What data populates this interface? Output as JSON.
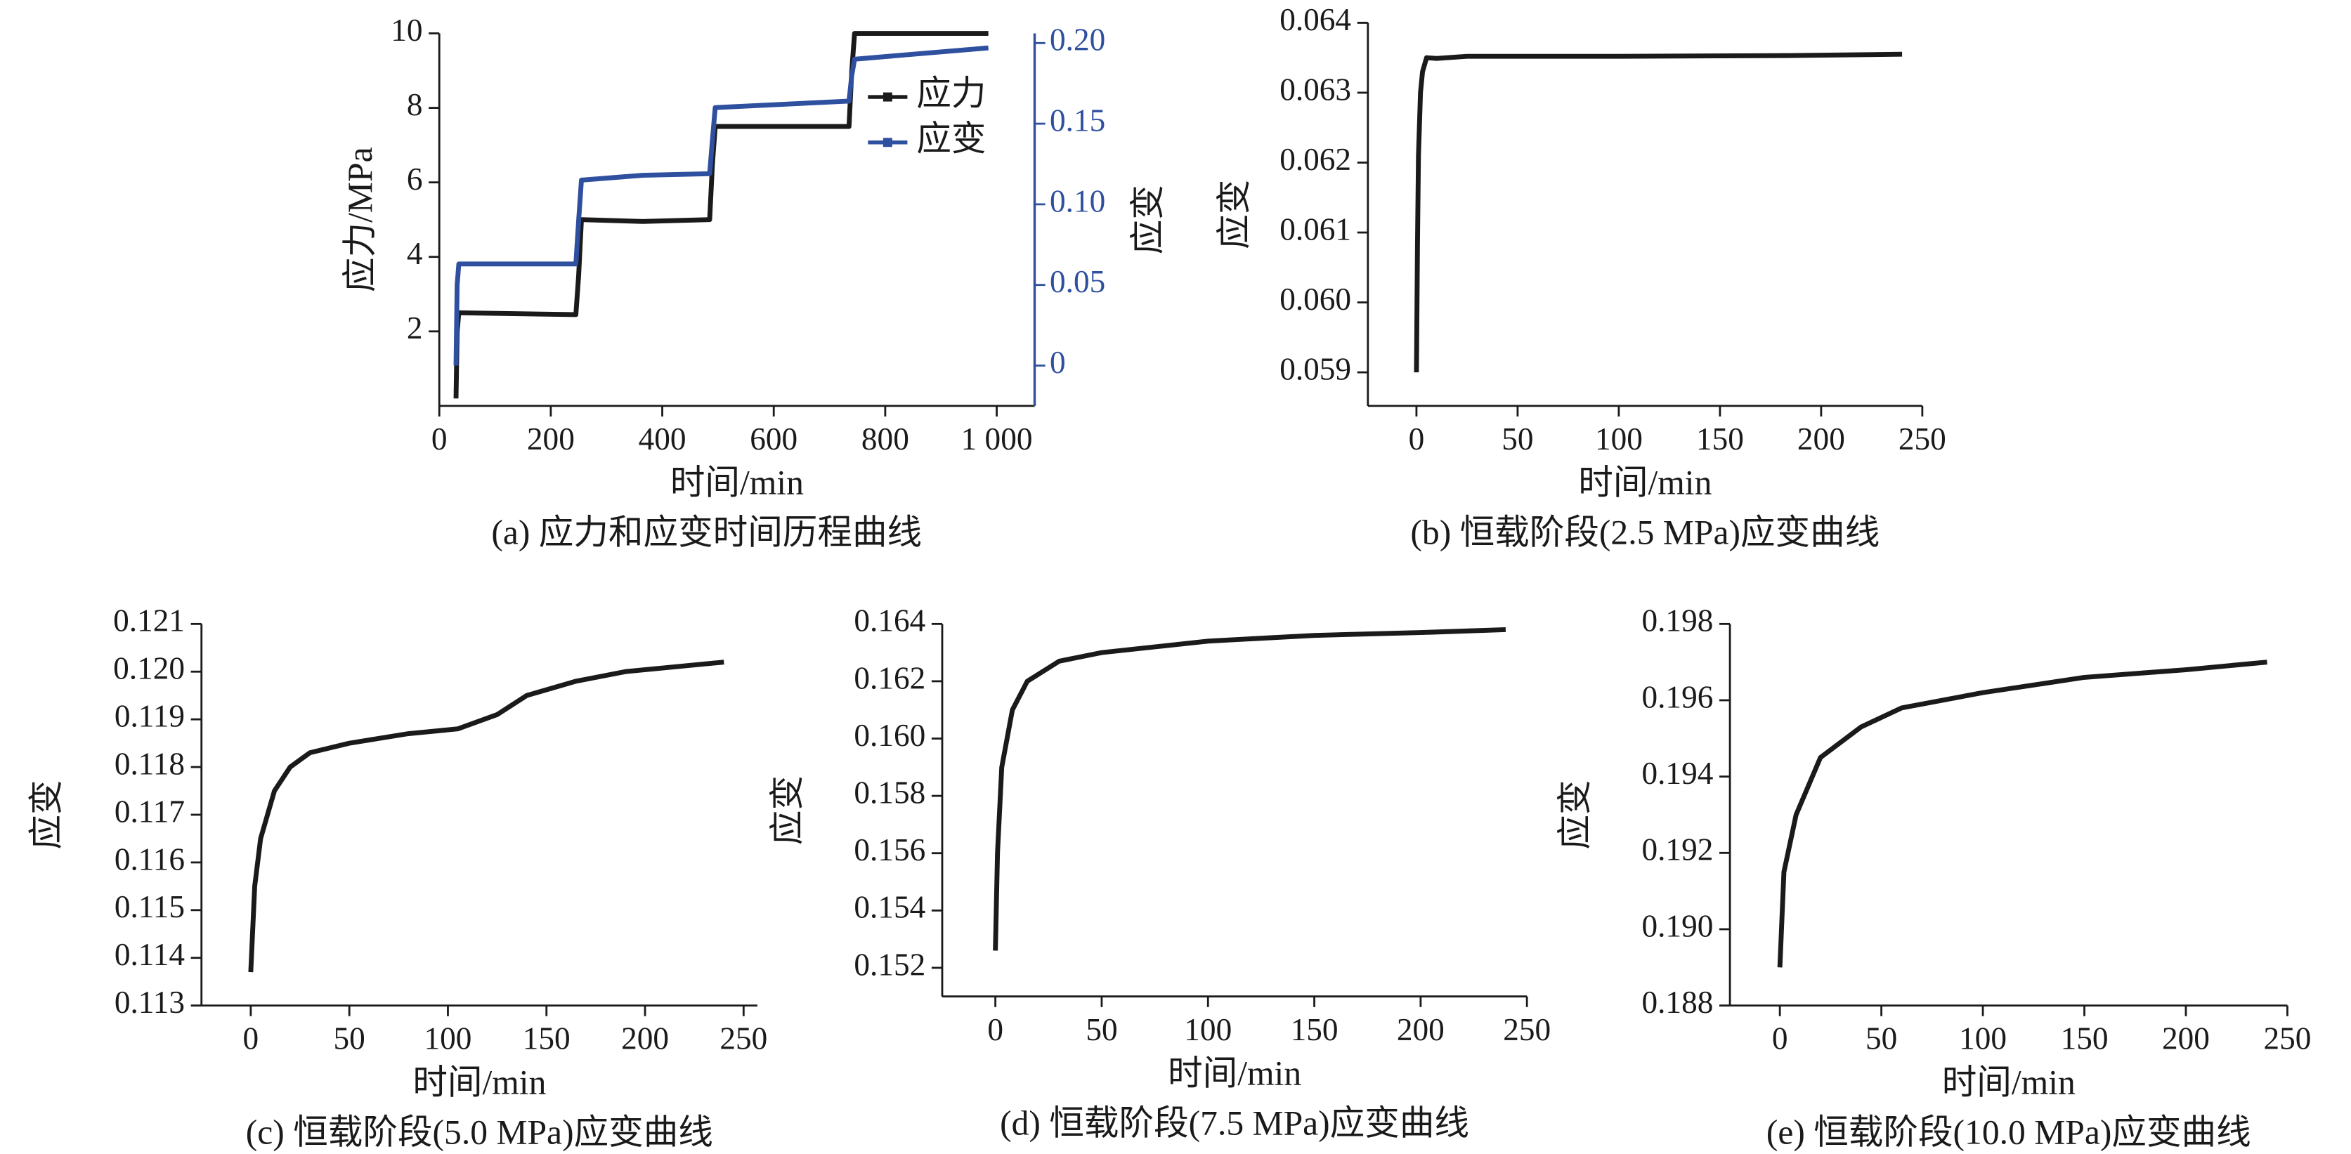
{
  "chart_data": [
    {
      "type": "line",
      "caption": "(a) 应力和应变时间历程曲线",
      "xlabel": "时间/min",
      "ylabel": "应力/MPa",
      "y2label": "应变",
      "x": [
        30,
        32,
        35,
        245,
        250,
        255,
        365,
        485,
        490,
        495,
        735,
        740,
        745,
        985
      ],
      "series": [
        {
          "name": "应力",
          "color": "#1a1a1a",
          "values": [
            0.2,
            2.0,
            2.5,
            2.45,
            3.5,
            5.0,
            4.95,
            5.0,
            6.5,
            7.5,
            7.5,
            9.0,
            10.0,
            10.0
          ]
        },
        {
          "name": "应变",
          "color": "#2f4f9f",
          "axis": "y2",
          "values": [
            0.0,
            0.05,
            0.063,
            0.063,
            0.09,
            0.115,
            0.118,
            0.119,
            0.14,
            0.16,
            0.164,
            0.18,
            0.19,
            0.197
          ]
        }
      ],
      "xlim": [
        0,
        1068
      ],
      "xticks": [
        0,
        200,
        400,
        600,
        800,
        {
          "value": 1000,
          "label": "1 000"
        }
      ],
      "ylim": [
        0,
        10
      ],
      "yticks": [
        2,
        4,
        6,
        8,
        10
      ],
      "y2lim": [
        -0.025,
        0.206
      ],
      "y2ticks": [
        0,
        0.05,
        {
          "value": 0.1,
          "label": "0.10"
        },
        0.15,
        {
          "value": 0.2,
          "label": "0.20"
        }
      ],
      "legend": "upper right"
    },
    {
      "type": "line",
      "caption": "(b) 恒载阶段(2.5 MPa)应变曲线",
      "xlabel": "时间/min",
      "ylabel": "应变",
      "x": [
        0,
        0.5,
        1,
        2,
        3,
        5,
        10,
        25,
        100,
        180,
        240
      ],
      "series": [
        {
          "color": "#1a1a1a",
          "values": [
            0.059,
            0.0608,
            0.0621,
            0.063,
            0.0633,
            0.0635,
            0.06349,
            0.06352,
            0.06352,
            0.06353,
            0.06355
          ]
        }
      ],
      "xlim": [
        -24,
        250
      ],
      "xticks": [
        0,
        50,
        100,
        150,
        200,
        250
      ],
      "ylim": [
        0.05852,
        0.064
      ],
      "yticks": [
        0.059,
        {
          "value": 0.06,
          "label": "0.060"
        },
        0.061,
        0.062,
        0.063,
        0.064
      ]
    },
    {
      "type": "line",
      "caption": "(c) 恒载阶段(5.0 MPa)应变曲线",
      "xlabel": "时间/min",
      "ylabel": "应变",
      "x": [
        0,
        2,
        5,
        12,
        20,
        30,
        50,
        80,
        105,
        125,
        140,
        165,
        190,
        240
      ],
      "series": [
        {
          "color": "#1a1a1a",
          "values": [
            0.1137,
            0.1155,
            0.1165,
            0.1175,
            0.118,
            0.1183,
            0.1185,
            0.1187,
            0.1188,
            0.1191,
            0.1195,
            0.1198,
            0.12,
            0.1202
          ]
        }
      ],
      "xlim": [
        -25,
        257
      ],
      "xticks": [
        0,
        50,
        100,
        150,
        200,
        250
      ],
      "ylim": [
        0.113,
        0.121
      ],
      "yticks": [
        0.113,
        0.114,
        0.115,
        0.116,
        0.117,
        0.118,
        0.119,
        {
          "value": 0.12,
          "label": "0.120"
        },
        0.121
      ]
    },
    {
      "type": "line",
      "caption": "(d) 恒载阶段(7.5 MPa)应变曲线",
      "xlabel": "时间/min",
      "ylabel": "应变",
      "x": [
        0,
        1,
        3,
        8,
        15,
        30,
        50,
        100,
        150,
        200,
        240
      ],
      "series": [
        {
          "color": "#1a1a1a",
          "values": [
            0.1526,
            0.156,
            0.159,
            0.161,
            0.162,
            0.1627,
            0.163,
            0.1634,
            0.1636,
            0.1637,
            0.1638
          ]
        }
      ],
      "xlim": [
        -25,
        250
      ],
      "xticks": [
        0,
        50,
        100,
        150,
        200,
        250
      ],
      "ylim": [
        0.151,
        0.164
      ],
      "yticks": [
        0.152,
        0.154,
        0.156,
        0.158,
        {
          "value": 0.16,
          "label": "0.160"
        },
        0.162,
        0.164
      ]
    },
    {
      "type": "line",
      "caption": "(e) 恒载阶段(10.0 MPa)应变曲线",
      "xlabel": "时间/min",
      "ylabel": "应变",
      "x": [
        0,
        2,
        8,
        20,
        40,
        60,
        100,
        150,
        200,
        240
      ],
      "series": [
        {
          "color": "#1a1a1a",
          "values": [
            0.189,
            0.1915,
            0.193,
            0.1945,
            0.1953,
            0.1958,
            0.1962,
            0.1966,
            0.1968,
            0.197
          ]
        }
      ],
      "xlim": [
        -24.6,
        250
      ],
      "xticks": [
        0,
        50,
        100,
        150,
        200,
        250
      ],
      "ylim": [
        0.188,
        0.198
      ],
      "yticks": [
        0.188,
        {
          "value": 0.19,
          "label": "0.190"
        },
        0.192,
        0.194,
        0.196,
        0.198
      ]
    }
  ]
}
